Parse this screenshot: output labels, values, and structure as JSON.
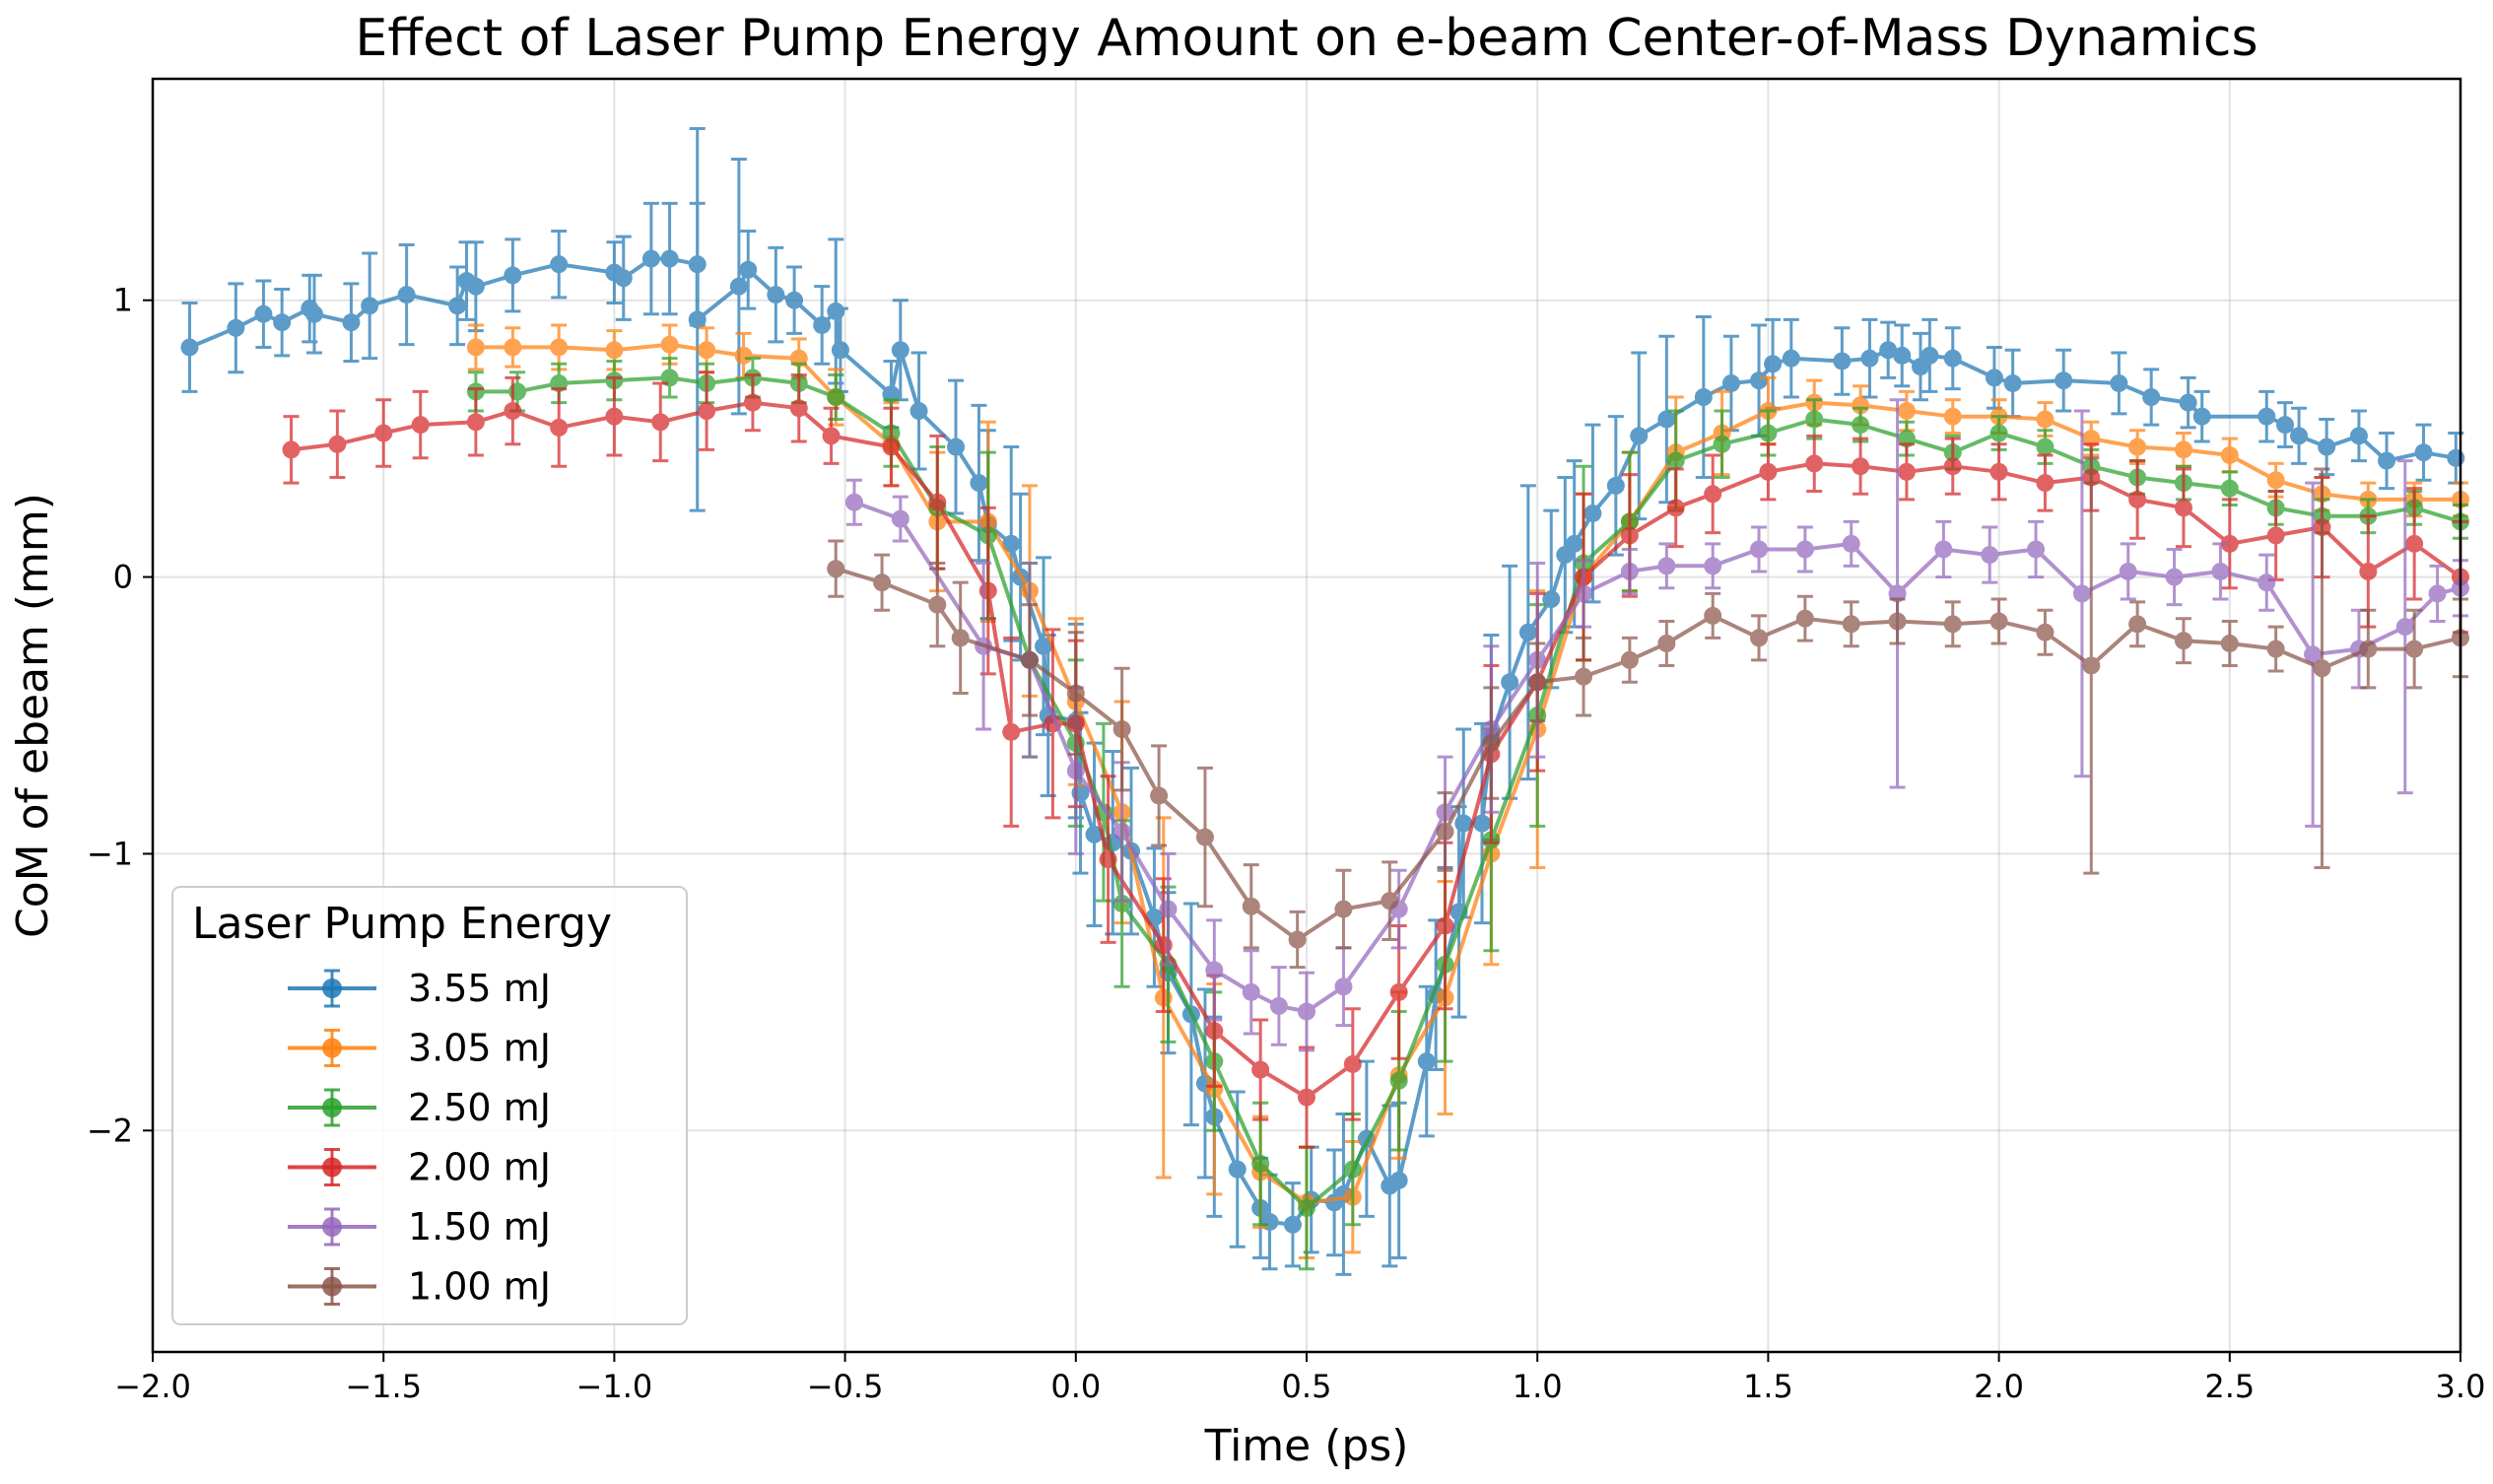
{
  "chart_data": {
    "type": "line",
    "title": "Effect of Laser Pump Energy Amount on e-beam Center-of-Mass Dynamics",
    "xlabel": "Time (ps)",
    "ylabel": "CoM of ebeam (mm)",
    "xlim": [
      -2.0,
      3.0
    ],
    "ylim": [
      -2.8,
      1.8
    ],
    "xticks": [
      -2.0,
      -1.5,
      -1.0,
      -0.5,
      0.0,
      0.5,
      1.0,
      1.5,
      2.0,
      2.5,
      3.0
    ],
    "xtick_labels": [
      "−2.0",
      "−1.5",
      "−1.0",
      "−0.5",
      "0.0",
      "0.5",
      "1.0",
      "1.5",
      "2.0",
      "2.5",
      "3.0"
    ],
    "yticks": [
      -2,
      -1,
      0,
      1
    ],
    "ytick_labels": [
      "−2",
      "−1",
      "0",
      "1"
    ],
    "grid": true,
    "legend": {
      "title": "Laser Pump Energy",
      "position": "lower-left"
    },
    "series": [
      {
        "name": "3.55 mJ",
        "color": "#1f77b4",
        "x": [
          -1.92,
          -1.82,
          -1.76,
          -1.72,
          -1.66,
          -1.65,
          -1.57,
          -1.53,
          -1.45,
          -1.34,
          -1.32,
          -1.3,
          -1.22,
          -1.12,
          -1.0,
          -0.98,
          -0.92,
          -0.88,
          -0.82,
          -0.82,
          -0.73,
          -0.71,
          -0.65,
          -0.61,
          -0.55,
          -0.52,
          -0.51,
          -0.4,
          -0.38,
          -0.34,
          -0.26,
          -0.21,
          -0.19,
          -0.14,
          -0.12,
          -0.07,
          -0.06,
          0.0,
          0.01,
          0.04,
          0.08,
          0.12,
          0.17,
          0.2,
          0.25,
          0.28,
          0.3,
          0.35,
          0.4,
          0.42,
          0.47,
          0.51,
          0.56,
          0.58,
          0.63,
          0.68,
          0.7,
          0.76,
          0.78,
          0.83,
          0.84,
          0.88,
          0.9,
          0.94,
          0.98,
          1.03,
          1.06,
          1.08,
          1.12,
          1.17,
          1.22,
          1.28,
          1.36,
          1.42,
          1.48,
          1.51,
          1.55,
          1.66,
          1.72,
          1.76,
          1.79,
          1.83,
          1.85,
          1.9,
          1.99,
          2.03,
          2.14,
          2.26,
          2.33,
          2.41,
          2.44,
          2.58,
          2.62,
          2.65,
          2.71,
          2.78,
          2.84,
          2.92,
          2.99
        ],
        "y": [
          0.83,
          0.9,
          0.95,
          0.92,
          0.97,
          0.95,
          0.92,
          0.98,
          1.02,
          0.98,
          1.07,
          1.05,
          1.09,
          1.13,
          1.1,
          1.08,
          1.15,
          1.15,
          1.13,
          0.93,
          1.05,
          1.11,
          1.02,
          1.0,
          0.91,
          0.96,
          0.82,
          0.66,
          0.82,
          0.6,
          0.47,
          0.34,
          0.19,
          0.12,
          0.0,
          -0.25,
          -0.5,
          -0.52,
          -0.78,
          -0.93,
          -0.96,
          -0.99,
          -1.23,
          -1.43,
          -1.58,
          -1.83,
          -1.95,
          -2.14,
          -2.28,
          -2.33,
          -2.34,
          -2.25,
          -2.26,
          -2.23,
          -2.03,
          -2.2,
          -2.18,
          -1.75,
          -1.51,
          -1.21,
          -0.89,
          -0.89,
          -0.58,
          -0.38,
          -0.2,
          -0.08,
          0.08,
          0.12,
          0.23,
          0.33,
          0.51,
          0.57,
          0.65,
          0.7,
          0.71,
          0.77,
          0.79,
          0.78,
          0.79,
          0.82,
          0.8,
          0.76,
          0.8,
          0.79,
          0.72,
          0.7,
          0.71,
          0.7,
          0.65,
          0.63,
          0.58,
          0.58,
          0.55,
          0.51,
          0.47,
          0.51,
          0.42,
          0.45,
          0.43
        ],
        "err": [
          0.16,
          0.16,
          0.12,
          0.12,
          0.12,
          0.14,
          0.14,
          0.19,
          0.18,
          0.14,
          0.14,
          0.16,
          0.13,
          0.12,
          0.11,
          0.15,
          0.2,
          0.2,
          0.22,
          0.69,
          0.46,
          0.14,
          0.17,
          0.12,
          0.14,
          0.26,
          0.15,
          0.12,
          0.18,
          0.21,
          0.24,
          0.28,
          0.34,
          0.35,
          0.3,
          0.32,
          0.29,
          0.35,
          0.29,
          0.33,
          0.33,
          0.3,
          0.25,
          0.29,
          0.4,
          0.34,
          0.36,
          0.28,
          0.18,
          0.17,
          0.15,
          0.19,
          0.19,
          0.29,
          0.28,
          0.29,
          0.28,
          0.27,
          0.27,
          0.38,
          0.34,
          0.36,
          0.37,
          0.42,
          0.53,
          0.32,
          0.28,
          0.3,
          0.32,
          0.25,
          0.3,
          0.3,
          0.29,
          0.17,
          0.2,
          0.16,
          0.14,
          0.12,
          0.14,
          0.1,
          0.11,
          0.12,
          0.13,
          0.11,
          0.11,
          0.12,
          0.11,
          0.11,
          0.1,
          0.09,
          0.09,
          0.09,
          0.08,
          0.1,
          0.1,
          0.09,
          0.1,
          0.1,
          0.09
        ]
      },
      {
        "name": "3.05 mJ",
        "color": "#ff7f0e",
        "x": [
          -1.3,
          -1.22,
          -1.12,
          -1.0,
          -0.88,
          -0.8,
          -0.72,
          -0.6,
          -0.52,
          -0.4,
          -0.3,
          -0.19,
          -0.1,
          0.0,
          0.1,
          0.19,
          0.3,
          0.4,
          0.5,
          0.6,
          0.7,
          0.8,
          0.9,
          1.0,
          1.1,
          1.2,
          1.3,
          1.4,
          1.5,
          1.6,
          1.7,
          1.8,
          1.9,
          2.0,
          2.1,
          2.2,
          2.3,
          2.4,
          2.5,
          2.6,
          2.7,
          2.8,
          2.9,
          3.0
        ],
        "y": [
          0.83,
          0.83,
          0.83,
          0.82,
          0.84,
          0.82,
          0.8,
          0.79,
          0.65,
          0.48,
          0.2,
          0.2,
          -0.05,
          -0.45,
          -0.85,
          -1.52,
          -1.85,
          -2.15,
          -2.26,
          -2.24,
          -1.8,
          -1.52,
          -1.0,
          -0.55,
          0.0,
          0.2,
          0.45,
          0.52,
          0.6,
          0.63,
          0.62,
          0.6,
          0.58,
          0.58,
          0.57,
          0.5,
          0.47,
          0.46,
          0.44,
          0.35,
          0.3,
          0.28,
          0.28,
          0.28
        ],
        "err": [
          0.08,
          0.07,
          0.08,
          0.07,
          0.07,
          0.08,
          0.08,
          0.07,
          0.1,
          0.15,
          0.25,
          0.36,
          0.38,
          0.3,
          0.4,
          0.65,
          0.38,
          0.2,
          0.2,
          0.2,
          0.3,
          0.42,
          0.4,
          0.5,
          0.3,
          0.25,
          0.2,
          0.15,
          0.12,
          0.08,
          0.07,
          0.07,
          0.06,
          0.06,
          0.06,
          0.06,
          0.06,
          0.06,
          0.06,
          0.06,
          0.06,
          0.06,
          0.06,
          0.06
        ]
      },
      {
        "name": "2.50 mJ",
        "color": "#2ca02c",
        "x": [
          -1.3,
          -1.21,
          -1.12,
          -1.0,
          -0.88,
          -0.8,
          -0.7,
          -0.6,
          -0.52,
          -0.4,
          -0.3,
          -0.19,
          -0.1,
          0.0,
          0.06,
          0.1,
          0.2,
          0.3,
          0.4,
          0.5,
          0.6,
          0.7,
          0.8,
          0.9,
          1.0,
          1.1,
          1.2,
          1.3,
          1.4,
          1.5,
          1.6,
          1.7,
          1.8,
          1.9,
          2.0,
          2.1,
          2.2,
          2.3,
          2.4,
          2.5,
          2.6,
          2.7,
          2.8,
          2.9,
          3.0
        ],
        "y": [
          0.67,
          0.67,
          0.7,
          0.71,
          0.72,
          0.7,
          0.72,
          0.7,
          0.65,
          0.52,
          0.25,
          0.15,
          -0.3,
          -0.6,
          -0.85,
          -1.18,
          -1.4,
          -1.75,
          -2.12,
          -2.28,
          -2.14,
          -1.82,
          -1.4,
          -0.95,
          -0.5,
          0.05,
          0.2,
          0.42,
          0.48,
          0.52,
          0.57,
          0.55,
          0.5,
          0.45,
          0.52,
          0.47,
          0.4,
          0.36,
          0.34,
          0.32,
          0.25,
          0.22,
          0.22,
          0.25,
          0.2
        ],
        "err": [
          0.07,
          0.07,
          0.07,
          0.07,
          0.07,
          0.07,
          0.07,
          0.07,
          0.08,
          0.12,
          0.22,
          0.3,
          0.35,
          0.3,
          0.32,
          0.3,
          0.28,
          0.25,
          0.22,
          0.22,
          0.2,
          0.25,
          0.35,
          0.4,
          0.4,
          0.35,
          0.25,
          0.18,
          0.12,
          0.08,
          0.07,
          0.06,
          0.06,
          0.06,
          0.06,
          0.06,
          0.06,
          0.06,
          0.06,
          0.06,
          0.06,
          0.06,
          0.06,
          0.06,
          0.06
        ]
      },
      {
        "name": "2.00 mJ",
        "color": "#d62728",
        "x": [
          -1.7,
          -1.6,
          -1.5,
          -1.42,
          -1.3,
          -1.22,
          -1.12,
          -1.0,
          -0.9,
          -0.8,
          -0.7,
          -0.6,
          -0.53,
          -0.4,
          -0.3,
          -0.19,
          -0.14,
          -0.05,
          0.0,
          0.07,
          0.19,
          0.3,
          0.4,
          0.5,
          0.6,
          0.7,
          0.8,
          0.9,
          1.0,
          1.1,
          1.2,
          1.3,
          1.38,
          1.5,
          1.6,
          1.7,
          1.8,
          1.9,
          2.0,
          2.1,
          2.2,
          2.3,
          2.4,
          2.5,
          2.6,
          2.7,
          2.8,
          2.9,
          3.0
        ],
        "y": [
          0.46,
          0.48,
          0.52,
          0.55,
          0.56,
          0.6,
          0.54,
          0.58,
          0.56,
          0.6,
          0.63,
          0.61,
          0.51,
          0.47,
          0.27,
          -0.05,
          -0.56,
          -0.53,
          -0.53,
          -1.02,
          -1.33,
          -1.64,
          -1.78,
          -1.88,
          -1.76,
          -1.5,
          -1.26,
          -0.64,
          -0.38,
          0.0,
          0.15,
          0.25,
          0.3,
          0.38,
          0.41,
          0.4,
          0.38,
          0.4,
          0.38,
          0.34,
          0.36,
          0.28,
          0.25,
          0.12,
          0.15,
          0.18,
          0.02,
          0.12,
          0.0
        ],
        "err": [
          0.12,
          0.12,
          0.12,
          0.12,
          0.12,
          0.12,
          0.14,
          0.14,
          0.14,
          0.14,
          0.1,
          0.12,
          0.1,
          0.14,
          0.24,
          0.3,
          0.34,
          0.34,
          0.3,
          0.3,
          0.24,
          0.2,
          0.18,
          0.18,
          0.2,
          0.24,
          0.3,
          0.32,
          0.32,
          0.3,
          0.22,
          0.14,
          0.14,
          0.1,
          0.1,
          0.1,
          0.1,
          0.1,
          0.1,
          0.1,
          0.12,
          0.14,
          0.14,
          0.16,
          0.16,
          0.18,
          0.2,
          0.2,
          0.2
        ]
      },
      {
        "name": "1.50 mJ",
        "color": "#9467bd",
        "x": [
          -0.48,
          -0.38,
          -0.2,
          -0.1,
          0.0,
          0.1,
          0.2,
          0.3,
          0.38,
          0.44,
          0.5,
          0.58,
          0.7,
          0.8,
          0.9,
          1.0,
          1.1,
          1.2,
          1.28,
          1.38,
          1.48,
          1.58,
          1.68,
          1.78,
          1.88,
          1.98,
          2.08,
          2.18,
          2.28,
          2.38,
          2.48,
          2.58,
          2.68,
          2.78,
          2.88,
          2.95,
          3.0
        ],
        "y": [
          0.27,
          0.21,
          -0.25,
          -0.3,
          -0.7,
          -0.92,
          -1.2,
          -1.42,
          -1.5,
          -1.55,
          -1.57,
          -1.48,
          -1.2,
          -0.85,
          -0.55,
          -0.3,
          -0.06,
          0.02,
          0.04,
          0.04,
          0.1,
          0.1,
          0.12,
          -0.06,
          0.1,
          0.08,
          0.1,
          -0.06,
          0.02,
          0.0,
          0.02,
          -0.02,
          -0.28,
          -0.26,
          -0.18,
          -0.06,
          -0.04
        ],
        "err": [
          0.08,
          0.08,
          0.3,
          0.35,
          0.3,
          0.25,
          0.2,
          0.18,
          0.15,
          0.14,
          0.14,
          0.14,
          0.14,
          0.2,
          0.3,
          0.35,
          0.12,
          0.08,
          0.08,
          0.08,
          0.08,
          0.08,
          0.08,
          0.7,
          0.1,
          0.1,
          0.1,
          0.66,
          0.1,
          0.1,
          0.1,
          0.1,
          0.62,
          0.14,
          0.6,
          0.1,
          0.1
        ]
      },
      {
        "name": "1.00 mJ",
        "color": "#8c564b",
        "x": [
          -0.52,
          -0.42,
          -0.3,
          -0.25,
          -0.1,
          0.0,
          0.1,
          0.18,
          0.28,
          0.38,
          0.48,
          0.58,
          0.68,
          0.8,
          0.9,
          1.0,
          1.1,
          1.2,
          1.28,
          1.38,
          1.48,
          1.58,
          1.68,
          1.78,
          1.9,
          2.0,
          2.1,
          2.2,
          2.3,
          2.4,
          2.5,
          2.6,
          2.7,
          2.8,
          2.9,
          3.0
        ],
        "y": [
          0.03,
          -0.02,
          -0.1,
          -0.22,
          -0.3,
          -0.42,
          -0.55,
          -0.79,
          -0.94,
          -1.19,
          -1.31,
          -1.2,
          -1.17,
          -0.92,
          -0.6,
          -0.38,
          -0.36,
          -0.3,
          -0.24,
          -0.14,
          -0.22,
          -0.15,
          -0.17,
          -0.16,
          -0.17,
          -0.16,
          -0.2,
          -0.32,
          -0.17,
          -0.23,
          -0.24,
          -0.26,
          -0.33,
          -0.26,
          -0.26,
          -0.22
        ],
        "err": [
          0.1,
          0.1,
          0.15,
          0.2,
          0.2,
          0.22,
          0.22,
          0.18,
          0.25,
          0.15,
          0.1,
          0.14,
          0.14,
          0.14,
          0.2,
          0.14,
          0.14,
          0.08,
          0.08,
          0.08,
          0.08,
          0.08,
          0.08,
          0.08,
          0.08,
          0.08,
          0.08,
          0.75,
          0.08,
          0.08,
          0.08,
          0.08,
          0.72,
          0.14,
          0.14,
          0.14
        ]
      }
    ]
  }
}
